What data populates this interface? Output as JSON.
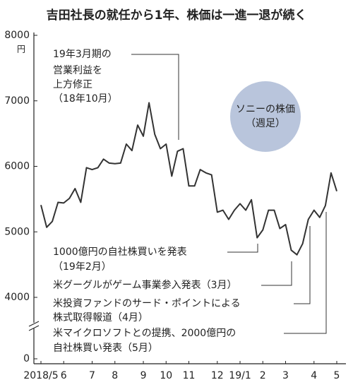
{
  "chart_data": {
    "type": "line",
    "title": "吉田社長の就任から1年、株価は一進一退が続く",
    "y_unit": "円",
    "categories": [
      "2018/5",
      null,
      null,
      null,
      "6",
      null,
      null,
      null,
      null,
      "7",
      null,
      null,
      null,
      "8",
      null,
      null,
      null,
      null,
      "9",
      null,
      null,
      null,
      "10",
      null,
      null,
      null,
      "11",
      null,
      null,
      null,
      null,
      "12",
      null,
      null,
      null,
      "19/1",
      null,
      null,
      null,
      "2",
      null,
      null,
      null,
      "3",
      null,
      null,
      null,
      null,
      "4",
      null,
      null,
      null,
      "5"
    ],
    "series": [
      {
        "name": "ソニーの株価",
        "frequency_note": "（週足）",
        "color": "#333333",
        "badge_color": "#b9c5dc",
        "values": [
          5410,
          5070,
          5160,
          5450,
          5440,
          5510,
          5660,
          5450,
          5980,
          5950,
          5980,
          6110,
          6050,
          6040,
          6050,
          6340,
          6240,
          6630,
          6460,
          6970,
          6490,
          6270,
          6340,
          5850,
          6230,
          6270,
          5700,
          5700,
          5950,
          5900,
          5870,
          5300,
          5330,
          5190,
          5330,
          5430,
          5330,
          5490,
          4910,
          5030,
          5330,
          5330,
          5050,
          5110,
          4720,
          4650,
          4820,
          5190,
          5330,
          5220,
          5400,
          5900,
          5620
        ]
      }
    ],
    "ylim": [
      0,
      8000
    ],
    "yticks": [
      0,
      4000,
      5000,
      6000,
      7000,
      8000
    ],
    "y_break": true,
    "grid": false,
    "annotations": [
      [
        "19年3月期の",
        "営業利益を",
        "上方修正",
        "（18年10月）"
      ],
      [
        "1000億円の自社株買いを発表",
        "（19年2月）"
      ],
      [
        "米グーグルがゲーム事業参入発表（3月）"
      ],
      [
        "米投資ファンドのサード・ポイントによる",
        "株式取得報道（4月）"
      ],
      [
        "米マイクロソフトとの提携、2000億円の",
        "自社株買い発表（5月）"
      ]
    ]
  }
}
